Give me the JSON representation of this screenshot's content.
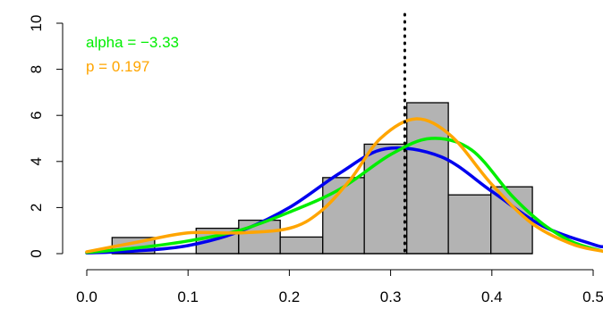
{
  "chart_data": {
    "type": "bar",
    "title": "",
    "xlabel": "",
    "ylabel": "",
    "xlim": [
      0.0,
      0.5
    ],
    "ylim": [
      0,
      10
    ],
    "x_ticks": [
      "0.0",
      "0.1",
      "0.2",
      "0.3",
      "0.4",
      "0.5"
    ],
    "y_ticks": [
      "0",
      "2",
      "4",
      "6",
      "8",
      "10"
    ],
    "grid": false,
    "bar_color": "#b3b3b3",
    "bins": [
      {
        "x0": 0.025,
        "x1": 0.067,
        "value": 0.7
      },
      {
        "x0": 0.067,
        "x1": 0.108,
        "value": 0.0
      },
      {
        "x0": 0.108,
        "x1": 0.15,
        "value": 1.1
      },
      {
        "x0": 0.15,
        "x1": 0.191,
        "value": 1.45
      },
      {
        "x0": 0.191,
        "x1": 0.233,
        "value": 0.72
      },
      {
        "x0": 0.233,
        "x1": 0.274,
        "value": 3.3
      },
      {
        "x0": 0.274,
        "x1": 0.316,
        "value": 4.75
      },
      {
        "x0": 0.316,
        "x1": 0.357,
        "value": 6.55
      },
      {
        "x0": 0.357,
        "x1": 0.399,
        "value": 2.55
      },
      {
        "x0": 0.399,
        "x1": 0.44,
        "value": 2.9
      }
    ],
    "vline": {
      "x": 0.314,
      "style": "dotted",
      "color": "#000000"
    },
    "series": [
      {
        "color": "#0000ee",
        "x": [
          0.0,
          0.05,
          0.1,
          0.15,
          0.2,
          0.25,
          0.295,
          0.35,
          0.4,
          0.45,
          0.5,
          0.51
        ],
        "y": [
          0.03,
          0.12,
          0.35,
          0.95,
          2.0,
          3.5,
          4.55,
          4.2,
          2.7,
          1.2,
          0.4,
          0.3
        ]
      },
      {
        "color": "#00ee00",
        "x": [
          0.0,
          0.05,
          0.1,
          0.15,
          0.2,
          0.25,
          0.3,
          0.34,
          0.38,
          0.42,
          0.45,
          0.48,
          0.51
        ],
        "y": [
          0.05,
          0.25,
          0.55,
          1.0,
          1.8,
          2.8,
          4.3,
          5.0,
          4.5,
          2.5,
          1.3,
          0.5,
          0.1
        ]
      },
      {
        "color": "#ffa500",
        "x": [
          0.0,
          0.05,
          0.1,
          0.15,
          0.2,
          0.23,
          0.26,
          0.29,
          0.325,
          0.36,
          0.4,
          0.44,
          0.48,
          0.51
        ],
        "y": [
          0.08,
          0.5,
          0.9,
          0.9,
          1.1,
          1.8,
          3.2,
          5.0,
          5.85,
          5.1,
          3.0,
          1.3,
          0.4,
          0.1
        ]
      }
    ],
    "annotations": [
      {
        "text": "alpha = −3.33",
        "color": "#00ee00",
        "x": 0.0,
        "y": 9.3
      },
      {
        "text": "p = 0.197",
        "color": "#ffa500",
        "x": 0.0,
        "y": 8.1
      }
    ]
  }
}
